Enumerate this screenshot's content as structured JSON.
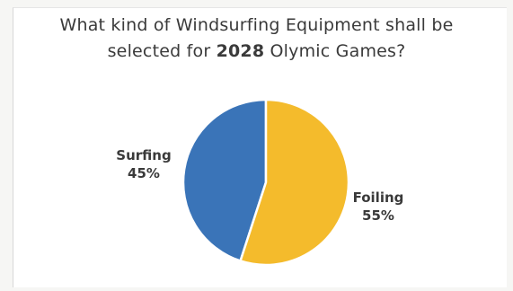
{
  "chart_data": {
    "type": "pie",
    "title_line1": "What kind of Windsurfing Equipment shall be",
    "title_line2_pre": "selected for ",
    "title_line2_bold": "2028",
    "title_line2_post": " Olymic Games?",
    "slices": [
      {
        "label": "Surfing",
        "percent_label": "45%",
        "value": 45,
        "color": "#3a74b8"
      },
      {
        "label": "Foiling",
        "percent_label": "55%",
        "value": 55,
        "color": "#f4bb2c"
      }
    ],
    "start_angle_deg": 0,
    "direction": "counterclockwise-from-top"
  }
}
